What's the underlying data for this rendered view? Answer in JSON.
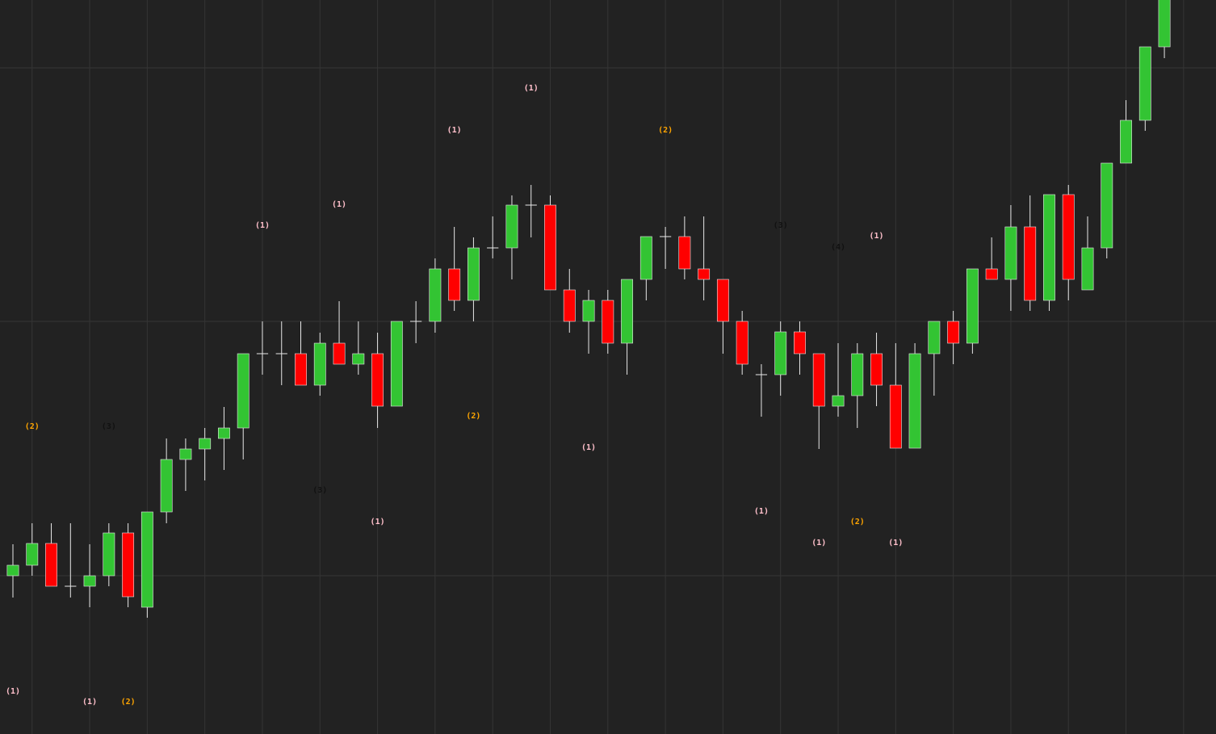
{
  "chart_data": {
    "type": "candlestick",
    "x": [
      0,
      1,
      2,
      3,
      4,
      5,
      6,
      7,
      8,
      9,
      10,
      11,
      12,
      13,
      14,
      15,
      16,
      17,
      18,
      19,
      20,
      21,
      22,
      23,
      24,
      25,
      26,
      27,
      28,
      29,
      30,
      31,
      32,
      33,
      34,
      35,
      36,
      37,
      38,
      39,
      40,
      41,
      42,
      43,
      44,
      45,
      46,
      47,
      48,
      49,
      50,
      51,
      52,
      53,
      54,
      55,
      56,
      57,
      58,
      59,
      60
    ],
    "open": [
      196,
      209,
      236,
      183,
      183,
      196,
      249,
      157,
      275,
      340,
      353,
      366,
      379,
      471,
      471,
      471,
      432,
      484,
      458,
      471,
      406,
      511,
      511,
      576,
      537,
      602,
      602,
      655,
      655,
      550,
      511,
      537,
      484,
      563,
      616,
      616,
      576,
      563,
      511,
      445,
      445,
      498,
      471,
      406,
      419,
      471,
      432,
      354,
      471,
      511,
      484,
      576,
      563,
      628,
      537,
      668,
      550,
      602,
      707,
      760,
      851
    ],
    "high": [
      235,
      261,
      261,
      261,
      235,
      261,
      261,
      275,
      366,
      366,
      379,
      405,
      471,
      511,
      511,
      511,
      497,
      536,
      511,
      497,
      511,
      536,
      589,
      628,
      615,
      641,
      667,
      680,
      667,
      576,
      550,
      550,
      563,
      616,
      628,
      641,
      641,
      563,
      524,
      458,
      511,
      511,
      471,
      484,
      484,
      497,
      484,
      484,
      511,
      524,
      576,
      615,
      655,
      667,
      668,
      680,
      641,
      707,
      785,
      851,
      929
    ],
    "low": [
      169,
      196,
      183,
      169,
      157,
      183,
      157,
      144,
      261,
      301,
      314,
      327,
      340,
      445,
      432,
      432,
      419,
      458,
      445,
      379,
      406,
      484,
      497,
      524,
      511,
      589,
      563,
      615,
      550,
      497,
      471,
      471,
      445,
      537,
      576,
      563,
      537,
      471,
      445,
      393,
      419,
      445,
      353,
      393,
      379,
      406,
      354,
      354,
      419,
      458,
      471,
      563,
      524,
      524,
      524,
      537,
      550,
      589,
      707,
      747,
      837
    ],
    "close": [
      209,
      236,
      183,
      183,
      196,
      249,
      170,
      275,
      340,
      353,
      366,
      379,
      471,
      471,
      471,
      432,
      484,
      458,
      471,
      406,
      511,
      511,
      576,
      537,
      602,
      602,
      655,
      655,
      550,
      511,
      537,
      484,
      563,
      616,
      616,
      576,
      563,
      511,
      458,
      445,
      498,
      471,
      406,
      419,
      471,
      432,
      354,
      471,
      511,
      484,
      576,
      563,
      628,
      537,
      668,
      563,
      602,
      707,
      760,
      851,
      914
    ],
    "up_color": "#33c433",
    "down_color": "#ff0000",
    "wick_color": "#e8e8e8",
    "background": "#222222",
    "grid_color": "#353535",
    "ylim": [
      0,
      909
    ],
    "xlim": [
      -0.673,
      62.69
    ],
    "ygrid": [
      196,
      511,
      825
    ],
    "xgrid": [
      1,
      4,
      7,
      10,
      13,
      16,
      19,
      22,
      25,
      28,
      31,
      34,
      37,
      40,
      43,
      46,
      49,
      52,
      55,
      58,
      61
    ],
    "annotations": [
      {
        "text": "(1)",
        "color": "#ffc0cb",
        "x": 0,
        "y": 53
      },
      {
        "text": "(2)",
        "color": "#ffa500",
        "x": 1,
        "y": 381
      },
      {
        "text": "(1)",
        "color": "#ffc0cb",
        "x": 4,
        "y": 40
      },
      {
        "text": "(3)",
        "color": "#111111",
        "x": 5,
        "y": 381
      },
      {
        "text": "(2)",
        "color": "#ffa500",
        "x": 6,
        "y": 40
      },
      {
        "text": "(1)",
        "color": "#ffc0cb",
        "x": 13,
        "y": 630
      },
      {
        "text": "(3)",
        "color": "#111111",
        "x": 16,
        "y": 302
      },
      {
        "text": "(1)",
        "color": "#ffc0cb",
        "x": 17,
        "y": 656
      },
      {
        "text": "(1)",
        "color": "#ffc0cb",
        "x": 19,
        "y": 263
      },
      {
        "text": "(1)",
        "color": "#ffc0cb",
        "x": 23,
        "y": 748
      },
      {
        "text": "(2)",
        "color": "#ffa500",
        "x": 24,
        "y": 394
      },
      {
        "text": "(1)",
        "color": "#ffc0cb",
        "x": 27,
        "y": 800
      },
      {
        "text": "(1)",
        "color": "#ffc0cb",
        "x": 30,
        "y": 355
      },
      {
        "text": "(2)",
        "color": "#ffa500",
        "x": 34,
        "y": 748
      },
      {
        "text": "(1)",
        "color": "#ffc0cb",
        "x": 39,
        "y": 276
      },
      {
        "text": "(3)",
        "color": "#111111",
        "x": 40,
        "y": 630
      },
      {
        "text": "(1)",
        "color": "#ffc0cb",
        "x": 42,
        "y": 237
      },
      {
        "text": "(4)",
        "color": "#111111",
        "x": 43,
        "y": 603
      },
      {
        "text": "(2)",
        "color": "#ffa500",
        "x": 44,
        "y": 263
      },
      {
        "text": "(1)",
        "color": "#ffc0cb",
        "x": 45,
        "y": 617
      },
      {
        "text": "(1)",
        "color": "#ffc0cb",
        "x": 46,
        "y": 237
      }
    ]
  }
}
